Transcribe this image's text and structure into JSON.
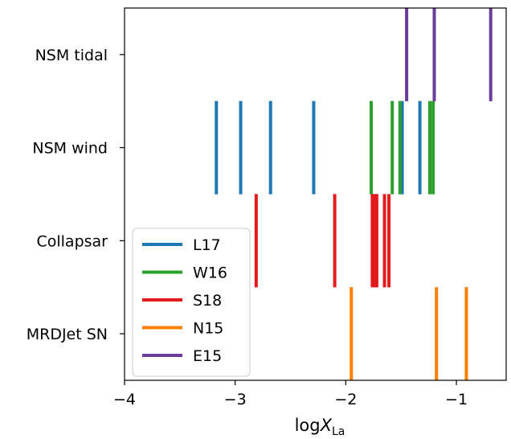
{
  "chart_data": {
    "type": "event",
    "xlabel": "log",
    "xlabel_var": "X",
    "xlabel_sub": "La",
    "xlim": [
      -4,
      -0.55
    ],
    "xticks": [
      -4,
      -3,
      -2,
      -1
    ],
    "xtick_labels": [
      "−4",
      "−3",
      "−2",
      "−1"
    ],
    "categories": [
      "NSM tidal",
      "NSM wind",
      "Collapsar",
      "MRDJet SN"
    ],
    "legend_position": "lower-left",
    "series": [
      {
        "name": "L17",
        "color": "#1f77b4",
        "category": "NSM wind",
        "x": [
          -3.17,
          -2.95,
          -2.68,
          -2.29,
          -1.49,
          -1.33
        ]
      },
      {
        "name": "W16",
        "color": "#2ca02c",
        "category": "NSM wind",
        "x": [
          -1.77,
          -1.58,
          -1.51,
          -1.24,
          -1.21
        ]
      },
      {
        "name": "S18",
        "color": "#e31a1c",
        "category": "Collapsar",
        "x": [
          -2.81,
          -2.1,
          -1.76,
          -1.74,
          -1.72,
          -1.65,
          -1.61
        ]
      },
      {
        "name": "N15",
        "color": "#ff7f00",
        "category": "MRDJet SN",
        "x": [
          -1.95,
          -1.18,
          -0.91
        ]
      },
      {
        "name": "E15",
        "color": "#6a3d9a",
        "category": "NSM tidal",
        "x": [
          -1.45,
          -1.2,
          -0.69
        ]
      }
    ]
  }
}
